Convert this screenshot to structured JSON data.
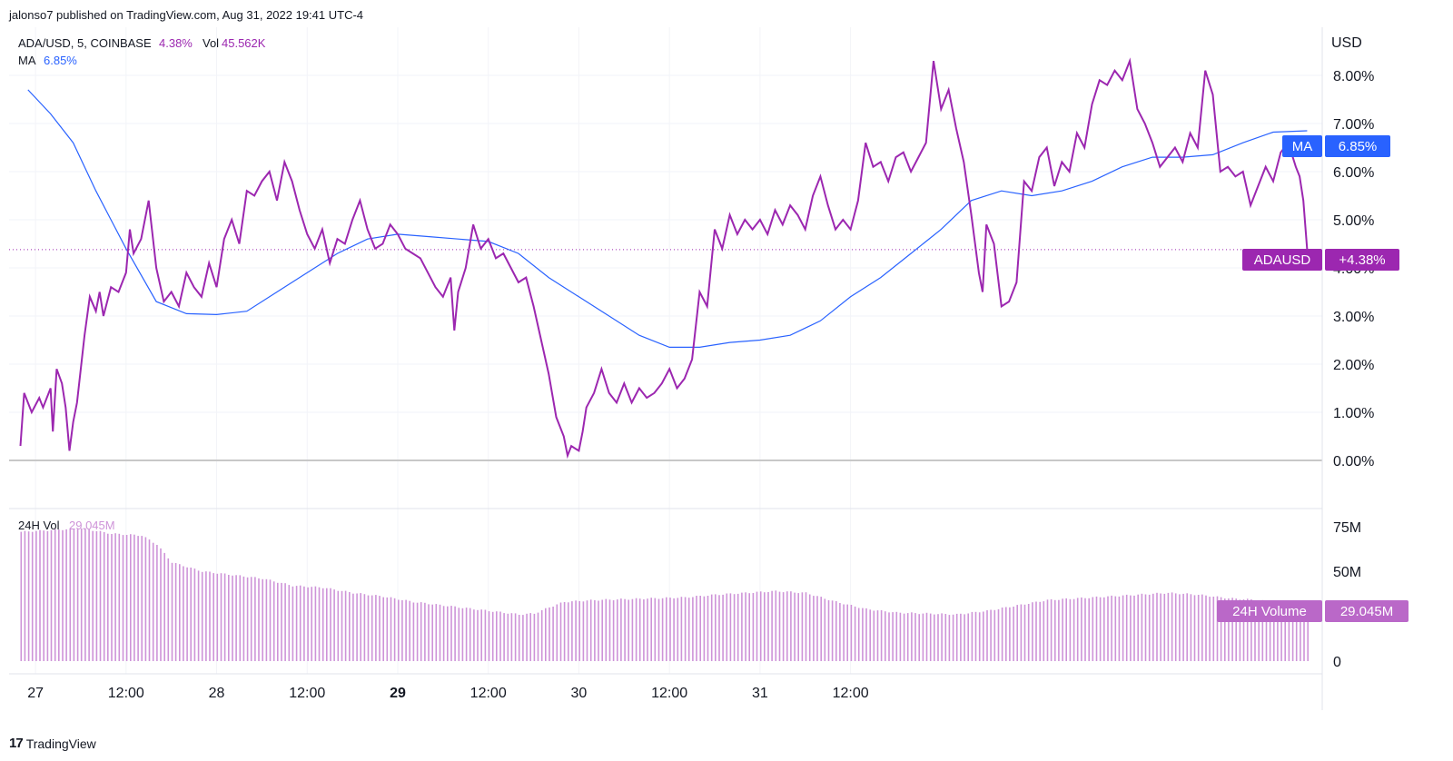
{
  "publisher": "jalonso7 published on TradingView.com, Aug 31, 2022 19:41 UTC-4",
  "legend": {
    "symbol": "ADA/USD, 5, COINBASE",
    "change": "4.38%",
    "vol_label": "Vol",
    "vol_value": "45.562K",
    "ma_label": "MA",
    "ma_value": "6.85%",
    "vol24_label": "24H Vol",
    "vol24_value": "29.045M"
  },
  "axis": {
    "currency": "USD",
    "price_ticks": [
      "8.00%",
      "7.00%",
      "6.00%",
      "5.00%",
      "4.00%",
      "3.00%",
      "2.00%",
      "1.00%",
      "0.00%"
    ],
    "volume_ticks": [
      "75M",
      "50M",
      "25M",
      "0"
    ],
    "time_ticks": [
      "27",
      "12:00",
      "28",
      "12:00",
      "29",
      "12:00",
      "30",
      "12:00",
      "31",
      "12:00"
    ]
  },
  "badges": {
    "ma_name": "MA",
    "ma_value": "6.85%",
    "price_name": "ADAUSD",
    "price_value": "+4.38%",
    "vol_name": "24H Volume",
    "vol_value": "29.045M"
  },
  "colors": {
    "price": "#9c27b0",
    "ma": "#2962ff",
    "volume": "#ce93d8",
    "grid": "#f0f3fa"
  },
  "brand": "TradingView",
  "chart_data": {
    "type": "line",
    "x_unit": "hours since Aug 27 00:00",
    "price_series": {
      "name": "ADA/USD",
      "unit": "%",
      "points": [
        [
          -2,
          0.3
        ],
        [
          -1.5,
          1.4
        ],
        [
          -0.5,
          1.0
        ],
        [
          0.5,
          1.3
        ],
        [
          1,
          1.1
        ],
        [
          2,
          1.5
        ],
        [
          2.3,
          0.6
        ],
        [
          2.8,
          1.9
        ],
        [
          3.5,
          1.6
        ],
        [
          4,
          1.1
        ],
        [
          4.5,
          0.2
        ],
        [
          5,
          0.8
        ],
        [
          5.5,
          1.2
        ],
        [
          6.5,
          2.6
        ],
        [
          7.2,
          3.4
        ],
        [
          8,
          3.1
        ],
        [
          8.5,
          3.5
        ],
        [
          9,
          3.0
        ],
        [
          10,
          3.6
        ],
        [
          11,
          3.5
        ],
        [
          12,
          3.9
        ],
        [
          12.5,
          4.8
        ],
        [
          13,
          4.3
        ],
        [
          14,
          4.6
        ],
        [
          15,
          5.4
        ],
        [
          16,
          4.0
        ],
        [
          17,
          3.3
        ],
        [
          18,
          3.5
        ],
        [
          19,
          3.2
        ],
        [
          20,
          3.9
        ],
        [
          21,
          3.6
        ],
        [
          22,
          3.4
        ],
        [
          23,
          4.1
        ],
        [
          24,
          3.6
        ],
        [
          25,
          4.6
        ],
        [
          26,
          5.0
        ],
        [
          27,
          4.5
        ],
        [
          28,
          5.6
        ],
        [
          29,
          5.5
        ],
        [
          30,
          5.8
        ],
        [
          31,
          6.0
        ],
        [
          32,
          5.4
        ],
        [
          33,
          6.2
        ],
        [
          34,
          5.8
        ],
        [
          35,
          5.2
        ],
        [
          36,
          4.7
        ],
        [
          37,
          4.4
        ],
        [
          38,
          4.8
        ],
        [
          39,
          4.1
        ],
        [
          40,
          4.6
        ],
        [
          41,
          4.5
        ],
        [
          42,
          5.0
        ],
        [
          43,
          5.4
        ],
        [
          44,
          4.8
        ],
        [
          45,
          4.4
        ],
        [
          46,
          4.5
        ],
        [
          47,
          4.9
        ],
        [
          48,
          4.7
        ],
        [
          49,
          4.4
        ],
        [
          50,
          4.3
        ],
        [
          51,
          4.2
        ],
        [
          52,
          3.9
        ],
        [
          53,
          3.6
        ],
        [
          54,
          3.4
        ],
        [
          55,
          3.8
        ],
        [
          55.5,
          2.7
        ],
        [
          56,
          3.5
        ],
        [
          57,
          4.0
        ],
        [
          58,
          4.9
        ],
        [
          59,
          4.4
        ],
        [
          60,
          4.6
        ],
        [
          61,
          4.2
        ],
        [
          62,
          4.3
        ],
        [
          63,
          4.0
        ],
        [
          64,
          3.7
        ],
        [
          65,
          3.8
        ],
        [
          66,
          3.2
        ],
        [
          67,
          2.5
        ],
        [
          68,
          1.8
        ],
        [
          69,
          0.9
        ],
        [
          70,
          0.5
        ],
        [
          70.5,
          0.1
        ],
        [
          71,
          0.3
        ],
        [
          72,
          0.2
        ],
        [
          72.5,
          0.6
        ],
        [
          73,
          1.1
        ],
        [
          74,
          1.4
        ],
        [
          75,
          1.9
        ],
        [
          76,
          1.4
        ],
        [
          77,
          1.2
        ],
        [
          78,
          1.6
        ],
        [
          79,
          1.2
        ],
        [
          80,
          1.5
        ],
        [
          81,
          1.3
        ],
        [
          82,
          1.4
        ],
        [
          83,
          1.6
        ],
        [
          84,
          1.9
        ],
        [
          85,
          1.5
        ],
        [
          86,
          1.7
        ],
        [
          87,
          2.1
        ],
        [
          88,
          3.5
        ],
        [
          89,
          3.2
        ],
        [
          90,
          4.8
        ],
        [
          91,
          4.4
        ],
        [
          92,
          5.1
        ],
        [
          93,
          4.7
        ],
        [
          94,
          5.0
        ],
        [
          95,
          4.8
        ],
        [
          96,
          5.0
        ],
        [
          97,
          4.7
        ],
        [
          98,
          5.2
        ],
        [
          99,
          4.9
        ],
        [
          100,
          5.3
        ],
        [
          101,
          5.1
        ],
        [
          102,
          4.8
        ],
        [
          103,
          5.5
        ],
        [
          104,
          5.9
        ],
        [
          105,
          5.3
        ],
        [
          106,
          4.8
        ],
        [
          107,
          5.0
        ],
        [
          108,
          4.8
        ],
        [
          109,
          5.4
        ],
        [
          110,
          6.6
        ],
        [
          111,
          6.1
        ],
        [
          112,
          6.2
        ],
        [
          113,
          5.8
        ],
        [
          114,
          6.3
        ],
        [
          115,
          6.4
        ],
        [
          116,
          6.0
        ],
        [
          117,
          6.3
        ],
        [
          118,
          6.6
        ],
        [
          119,
          8.3
        ],
        [
          120,
          7.3
        ],
        [
          121,
          7.7
        ],
        [
          122,
          6.9
        ],
        [
          123,
          6.2
        ],
        [
          124,
          5.1
        ],
        [
          125,
          3.9
        ],
        [
          125.5,
          3.5
        ],
        [
          126,
          4.9
        ],
        [
          127,
          4.5
        ],
        [
          128,
          3.2
        ],
        [
          129,
          3.3
        ],
        [
          130,
          3.7
        ],
        [
          131,
          5.8
        ],
        [
          132,
          5.6
        ],
        [
          133,
          6.3
        ],
        [
          134,
          6.5
        ],
        [
          135,
          5.7
        ],
        [
          136,
          6.2
        ],
        [
          137,
          6.0
        ],
        [
          138,
          6.8
        ],
        [
          139,
          6.5
        ],
        [
          140,
          7.4
        ],
        [
          141,
          7.9
        ],
        [
          142,
          7.8
        ],
        [
          143,
          8.1
        ],
        [
          144,
          7.9
        ],
        [
          145,
          8.3
        ],
        [
          146,
          7.3
        ],
        [
          147,
          7.0
        ],
        [
          148,
          6.6
        ],
        [
          149,
          6.1
        ],
        [
          150,
          6.3
        ],
        [
          151,
          6.5
        ],
        [
          152,
          6.2
        ],
        [
          153,
          6.8
        ],
        [
          154,
          6.5
        ],
        [
          155,
          8.1
        ],
        [
          156,
          7.6
        ],
        [
          157,
          6.0
        ],
        [
          158,
          6.1
        ],
        [
          159,
          5.9
        ],
        [
          160,
          6.0
        ],
        [
          161,
          5.3
        ],
        [
          162,
          5.7
        ],
        [
          163,
          6.1
        ],
        [
          164,
          5.8
        ],
        [
          165,
          6.4
        ],
        [
          166,
          6.6
        ],
        [
          167,
          6.1
        ],
        [
          167.5,
          5.9
        ],
        [
          168,
          5.4
        ],
        [
          168.5,
          4.38
        ]
      ]
    },
    "ma_series": {
      "name": "MA",
      "unit": "%",
      "points": [
        [
          -1,
          7.7
        ],
        [
          2,
          7.2
        ],
        [
          5,
          6.6
        ],
        [
          8,
          5.6
        ],
        [
          12,
          4.4
        ],
        [
          16,
          3.3
        ],
        [
          20,
          3.05
        ],
        [
          24,
          3.03
        ],
        [
          28,
          3.1
        ],
        [
          32,
          3.5
        ],
        [
          36,
          3.9
        ],
        [
          40,
          4.3
        ],
        [
          44,
          4.6
        ],
        [
          48,
          4.7
        ],
        [
          52,
          4.65
        ],
        [
          56,
          4.6
        ],
        [
          60,
          4.55
        ],
        [
          64,
          4.3
        ],
        [
          68,
          3.8
        ],
        [
          72,
          3.4
        ],
        [
          76,
          3.0
        ],
        [
          80,
          2.6
        ],
        [
          84,
          2.35
        ],
        [
          88,
          2.35
        ],
        [
          92,
          2.45
        ],
        [
          96,
          2.5
        ],
        [
          100,
          2.6
        ],
        [
          104,
          2.9
        ],
        [
          108,
          3.4
        ],
        [
          112,
          3.8
        ],
        [
          116,
          4.3
        ],
        [
          120,
          4.8
        ],
        [
          124,
          5.4
        ],
        [
          128,
          5.6
        ],
        [
          132,
          5.5
        ],
        [
          136,
          5.6
        ],
        [
          140,
          5.8
        ],
        [
          144,
          6.1
        ],
        [
          148,
          6.3
        ],
        [
          152,
          6.3
        ],
        [
          156,
          6.35
        ],
        [
          160,
          6.6
        ],
        [
          164,
          6.82
        ],
        [
          168.5,
          6.85
        ]
      ]
    },
    "volume_series": {
      "name": "24H Vol",
      "unit": "M",
      "points": [
        [
          -2,
          72
        ],
        [
          2,
          73
        ],
        [
          6,
          74
        ],
        [
          10,
          71
        ],
        [
          14,
          70
        ],
        [
          16,
          65
        ],
        [
          18,
          55
        ],
        [
          22,
          50
        ],
        [
          26,
          48
        ],
        [
          30,
          46
        ],
        [
          34,
          42
        ],
        [
          38,
          41
        ],
        [
          42,
          38
        ],
        [
          46,
          36
        ],
        [
          50,
          33
        ],
        [
          54,
          31
        ],
        [
          58,
          29
        ],
        [
          62,
          27
        ],
        [
          64,
          26
        ],
        [
          66,
          26.5
        ],
        [
          68,
          30
        ],
        [
          70,
          33
        ],
        [
          74,
          34
        ],
        [
          78,
          34.5
        ],
        [
          82,
          35
        ],
        [
          86,
          35.5
        ],
        [
          90,
          37
        ],
        [
          94,
          38
        ],
        [
          98,
          39
        ],
        [
          102,
          38
        ],
        [
          106,
          33
        ],
        [
          110,
          29
        ],
        [
          114,
          27
        ],
        [
          118,
          26.5
        ],
        [
          122,
          26
        ],
        [
          126,
          28
        ],
        [
          130,
          31
        ],
        [
          134,
          34
        ],
        [
          138,
          35
        ],
        [
          142,
          36
        ],
        [
          146,
          37
        ],
        [
          150,
          38
        ],
        [
          154,
          37
        ],
        [
          158,
          35
        ],
        [
          162,
          34
        ],
        [
          166,
          31
        ],
        [
          168.5,
          29.045
        ]
      ]
    },
    "ylim_price": [
      -1.0,
      9.0
    ],
    "ylim_volume": [
      0,
      85
    ],
    "xlim": [
      -3.5,
      170.5
    ],
    "grid": true
  }
}
